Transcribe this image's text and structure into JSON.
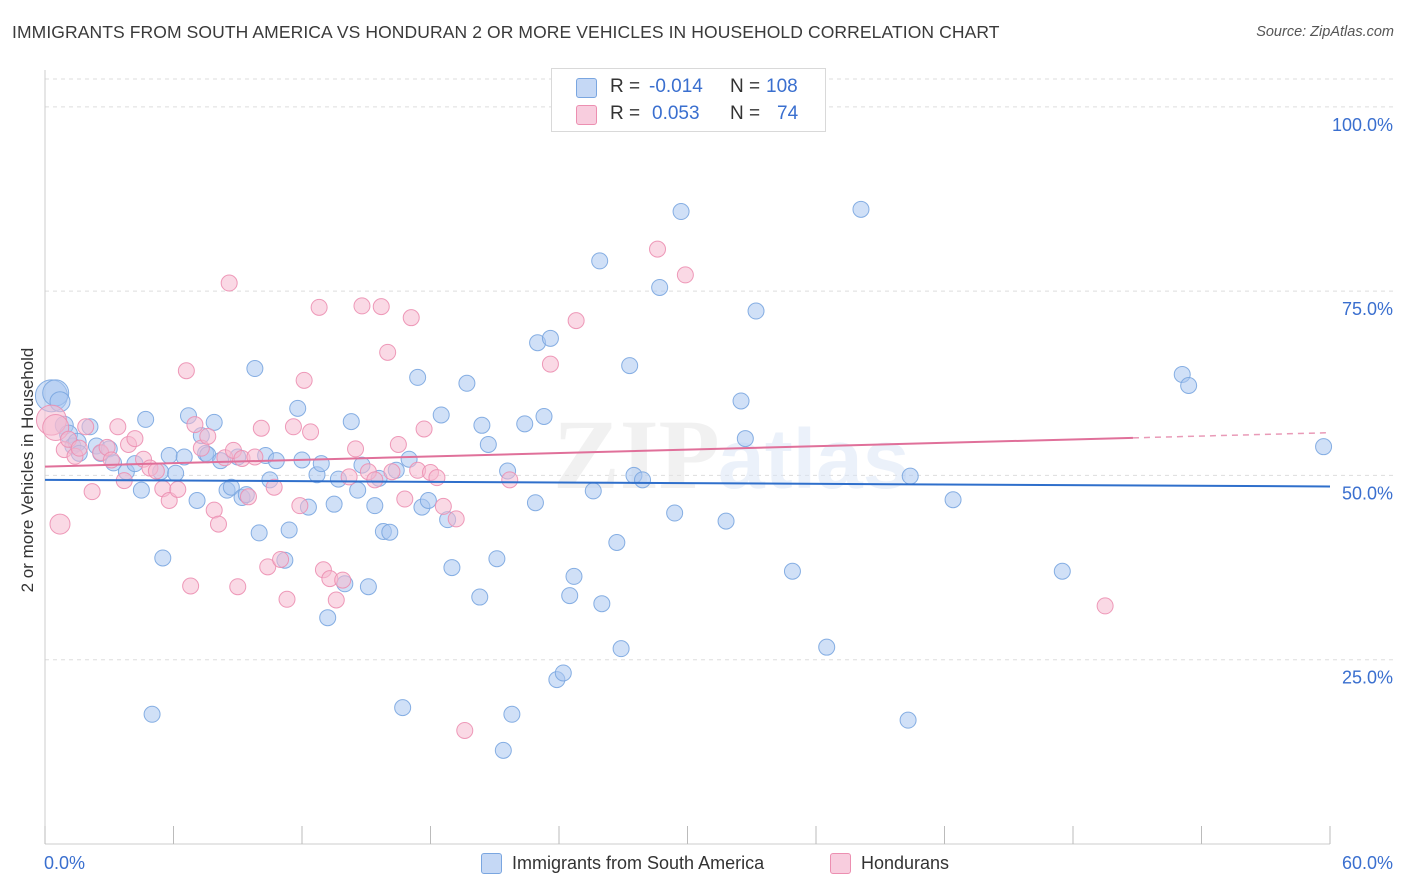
{
  "header": {
    "title": "IMMIGRANTS FROM SOUTH AMERICA VS HONDURAN 2 OR MORE VEHICLES IN HOUSEHOLD CORRELATION CHART",
    "source": "Source: ZipAtlas.com"
  },
  "watermark": {
    "zip": "ZIP",
    "atlas": "atlas"
  },
  "legend": {
    "r_label": "R =",
    "n_label": "N =",
    "series": [
      {
        "r": "-0.014",
        "n": "108"
      },
      {
        "r": "0.053",
        "n": "74"
      }
    ]
  },
  "bottom_legend": {
    "items": [
      "Immigrants from South America",
      "Hondurans"
    ]
  },
  "colors": {
    "blue_fill": "#a9c6f0",
    "blue_stroke": "#7aa6e0",
    "blue_line": "#2f6fcb",
    "pink_fill": "#f5b9cf",
    "pink_stroke": "#ec8fb1",
    "pink_line": "#e0709a",
    "axis_label": "#3a6fcf",
    "grid": "#dddddd"
  },
  "chart_data": {
    "type": "scatter",
    "title": "IMMIGRANTS FROM SOUTH AMERICA VS HONDURAN 2 OR MORE VEHICLES IN HOUSEHOLD CORRELATION CHART",
    "xlabel": "",
    "ylabel": "2 or more Vehicles in Household",
    "xlim": [
      0,
      60
    ],
    "ylim": [
      0,
      105
    ],
    "x_tick_labels": [
      "0.0%",
      "60.0%"
    ],
    "y_ticks": [
      {
        "value": 25,
        "label": "25.0%"
      },
      {
        "value": 50,
        "label": "50.0%"
      },
      {
        "value": 75,
        "label": "75.0%"
      },
      {
        "value": 100,
        "label": "100.0%"
      }
    ],
    "grid": "horizontal dashed",
    "legend_position": "top-center",
    "series": [
      {
        "name": "Immigrants from South America",
        "r": -0.014,
        "n": 108,
        "trend": {
          "x0": 0,
          "y0": 49.4,
          "x1": 60,
          "y1": 48.5,
          "dashed_from": null
        },
        "points": [
          [
            0.3,
            60.8,
            16
          ],
          [
            0.5,
            61.2,
            13
          ],
          [
            0.7,
            60.0,
            10
          ],
          [
            0.9,
            56.8,
            9
          ],
          [
            1.1,
            55.6,
            9
          ],
          [
            1.3,
            54.0,
            8
          ],
          [
            1.5,
            54.5,
            9
          ],
          [
            1.6,
            53.0,
            8
          ],
          [
            2.1,
            56.6,
            8
          ],
          [
            2.4,
            54.0,
            8
          ],
          [
            2.6,
            53.0,
            8
          ],
          [
            3.0,
            53.6,
            8
          ],
          [
            3.2,
            51.7,
            8
          ],
          [
            3.8,
            50.5,
            8
          ],
          [
            4.2,
            51.6,
            8
          ],
          [
            4.5,
            48.0,
            8
          ],
          [
            4.7,
            57.6,
            8
          ],
          [
            5.0,
            17.6,
            8
          ],
          [
            5.4,
            50.5,
            8
          ],
          [
            5.5,
            38.8,
            8
          ],
          [
            5.8,
            52.7,
            8
          ],
          [
            6.1,
            50.3,
            8
          ],
          [
            6.5,
            52.5,
            8
          ],
          [
            6.7,
            58.1,
            8
          ],
          [
            7.1,
            46.6,
            8
          ],
          [
            7.3,
            55.4,
            8
          ],
          [
            7.5,
            53.0,
            8
          ],
          [
            7.6,
            52.8,
            8
          ],
          [
            7.9,
            57.2,
            8
          ],
          [
            8.2,
            52.0,
            8
          ],
          [
            8.5,
            48.0,
            8
          ],
          [
            8.7,
            48.4,
            8
          ],
          [
            9.0,
            52.5,
            8
          ],
          [
            9.2,
            47.0,
            8
          ],
          [
            9.4,
            47.4,
            8
          ],
          [
            9.8,
            64.5,
            8
          ],
          [
            10.0,
            42.2,
            8
          ],
          [
            10.3,
            52.7,
            8
          ],
          [
            10.5,
            49.4,
            8
          ],
          [
            10.8,
            52.0,
            8
          ],
          [
            11.2,
            38.5,
            8
          ],
          [
            11.4,
            42.6,
            8
          ],
          [
            11.8,
            59.1,
            8
          ],
          [
            12.0,
            52.1,
            8
          ],
          [
            12.3,
            45.7,
            8
          ],
          [
            12.7,
            50.1,
            8
          ],
          [
            12.9,
            51.6,
            8
          ],
          [
            13.2,
            30.7,
            8
          ],
          [
            13.5,
            46.1,
            8
          ],
          [
            13.7,
            49.5,
            8
          ],
          [
            14.0,
            35.3,
            8
          ],
          [
            14.3,
            57.3,
            8
          ],
          [
            14.6,
            48.0,
            8
          ],
          [
            14.8,
            51.4,
            8
          ],
          [
            15.1,
            34.9,
            8
          ],
          [
            15.4,
            45.9,
            8
          ],
          [
            15.6,
            49.6,
            8
          ],
          [
            15.8,
            42.4,
            8
          ],
          [
            16.1,
            42.3,
            8
          ],
          [
            16.4,
            50.7,
            8
          ],
          [
            16.7,
            18.5,
            8
          ],
          [
            17.0,
            52.2,
            8
          ],
          [
            17.4,
            63.3,
            8
          ],
          [
            17.6,
            45.7,
            8
          ],
          [
            17.9,
            46.6,
            8
          ],
          [
            18.5,
            58.2,
            8
          ],
          [
            18.8,
            44.0,
            8
          ],
          [
            19.0,
            37.5,
            8
          ],
          [
            19.7,
            62.5,
            8
          ],
          [
            20.3,
            33.5,
            8
          ],
          [
            20.4,
            56.8,
            8
          ],
          [
            20.7,
            54.2,
            8
          ],
          [
            21.1,
            38.7,
            8
          ],
          [
            21.4,
            12.7,
            8
          ],
          [
            21.8,
            17.6,
            8
          ],
          [
            21.6,
            50.6,
            8
          ],
          [
            22.4,
            57.0,
            8
          ],
          [
            22.9,
            46.3,
            8
          ],
          [
            23.0,
            68.0,
            8
          ],
          [
            23.3,
            58.0,
            8
          ],
          [
            23.6,
            68.6,
            8
          ],
          [
            23.9,
            22.3,
            8
          ],
          [
            24.2,
            23.2,
            8
          ],
          [
            24.5,
            33.7,
            8
          ],
          [
            24.7,
            36.3,
            8
          ],
          [
            25.6,
            47.9,
            8
          ],
          [
            25.9,
            79.1,
            8
          ],
          [
            26.0,
            32.6,
            8
          ],
          [
            26.7,
            40.9,
            8
          ],
          [
            26.9,
            26.5,
            8
          ],
          [
            27.3,
            64.9,
            8
          ],
          [
            27.5,
            50.0,
            8
          ],
          [
            27.9,
            49.4,
            8
          ],
          [
            28.7,
            75.5,
            8
          ],
          [
            29.4,
            44.9,
            8
          ],
          [
            29.7,
            85.8,
            8
          ],
          [
            31.8,
            43.8,
            8
          ],
          [
            32.5,
            60.1,
            8
          ],
          [
            32.7,
            55.0,
            8
          ],
          [
            33.2,
            72.3,
            8
          ],
          [
            34.9,
            37.0,
            8
          ],
          [
            36.5,
            26.7,
            8
          ],
          [
            38.1,
            86.1,
            8
          ],
          [
            40.3,
            16.8,
            8
          ],
          [
            40.4,
            49.9,
            8
          ],
          [
            42.4,
            46.7,
            8
          ],
          [
            47.5,
            37.0,
            8
          ],
          [
            53.1,
            63.7,
            8
          ],
          [
            53.4,
            62.2,
            8
          ],
          [
            59.7,
            53.9,
            8
          ]
        ]
      },
      {
        "name": "Hondurans",
        "r": 0.053,
        "n": 74,
        "trend": {
          "x0": 0,
          "y0": 51.2,
          "x1": 60,
          "y1": 55.8,
          "dashed_from": 50.8
        },
        "points": [
          [
            0.3,
            57.5,
            15
          ],
          [
            0.5,
            56.5,
            13
          ],
          [
            0.7,
            43.4,
            10
          ],
          [
            0.9,
            53.5,
            8
          ],
          [
            1.1,
            54.9,
            8
          ],
          [
            1.4,
            52.6,
            8
          ],
          [
            1.6,
            53.7,
            8
          ],
          [
            1.9,
            56.6,
            8
          ],
          [
            2.2,
            47.8,
            8
          ],
          [
            2.6,
            53.1,
            8
          ],
          [
            2.9,
            53.8,
            8
          ],
          [
            3.1,
            52.1,
            8
          ],
          [
            3.4,
            56.6,
            8
          ],
          [
            3.7,
            49.3,
            8
          ],
          [
            3.9,
            54.2,
            8
          ],
          [
            4.2,
            55.0,
            8
          ],
          [
            4.6,
            52.2,
            8
          ],
          [
            4.9,
            51.0,
            8
          ],
          [
            5.2,
            50.6,
            8
          ],
          [
            5.5,
            48.2,
            8
          ],
          [
            5.8,
            46.6,
            8
          ],
          [
            6.2,
            48.1,
            8
          ],
          [
            6.6,
            64.2,
            8
          ],
          [
            6.8,
            35.0,
            8
          ],
          [
            7.0,
            56.9,
            8
          ],
          [
            7.3,
            53.7,
            8
          ],
          [
            7.6,
            55.3,
            8
          ],
          [
            7.9,
            45.3,
            8
          ],
          [
            8.1,
            43.4,
            8
          ],
          [
            8.4,
            52.4,
            8
          ],
          [
            8.6,
            76.1,
            8
          ],
          [
            8.8,
            53.4,
            8
          ],
          [
            9.0,
            34.9,
            8
          ],
          [
            9.2,
            52.3,
            8
          ],
          [
            9.5,
            47.1,
            8
          ],
          [
            9.8,
            52.5,
            8
          ],
          [
            10.1,
            56.4,
            8
          ],
          [
            10.4,
            37.6,
            8
          ],
          [
            10.7,
            48.4,
            8
          ],
          [
            11.0,
            38.6,
            8
          ],
          [
            11.3,
            33.2,
            8
          ],
          [
            11.6,
            56.6,
            8
          ],
          [
            11.9,
            45.9,
            8
          ],
          [
            12.1,
            62.9,
            8
          ],
          [
            12.4,
            55.9,
            8
          ],
          [
            12.8,
            72.8,
            8
          ],
          [
            13.0,
            37.2,
            8
          ],
          [
            13.3,
            36.0,
            8
          ],
          [
            13.6,
            33.1,
            8
          ],
          [
            13.9,
            35.8,
            8
          ],
          [
            14.2,
            49.8,
            8
          ],
          [
            14.5,
            53.6,
            8
          ],
          [
            14.8,
            73.0,
            8
          ],
          [
            15.1,
            50.5,
            8
          ],
          [
            15.4,
            49.4,
            8
          ],
          [
            15.7,
            72.9,
            8
          ],
          [
            16.0,
            66.7,
            8
          ],
          [
            16.2,
            50.5,
            8
          ],
          [
            16.5,
            54.2,
            8
          ],
          [
            16.8,
            46.8,
            8
          ],
          [
            17.1,
            71.4,
            8
          ],
          [
            17.4,
            50.7,
            8
          ],
          [
            17.7,
            56.3,
            8
          ],
          [
            18.0,
            50.4,
            8
          ],
          [
            18.3,
            49.7,
            8
          ],
          [
            18.6,
            45.8,
            8
          ],
          [
            19.2,
            44.1,
            8
          ],
          [
            19.6,
            15.4,
            8
          ],
          [
            21.7,
            49.4,
            8
          ],
          [
            23.6,
            65.1,
            8
          ],
          [
            24.8,
            71.0,
            8
          ],
          [
            28.6,
            80.7,
            8
          ],
          [
            29.9,
            77.2,
            8
          ],
          [
            49.5,
            32.3,
            8
          ]
        ]
      }
    ]
  }
}
